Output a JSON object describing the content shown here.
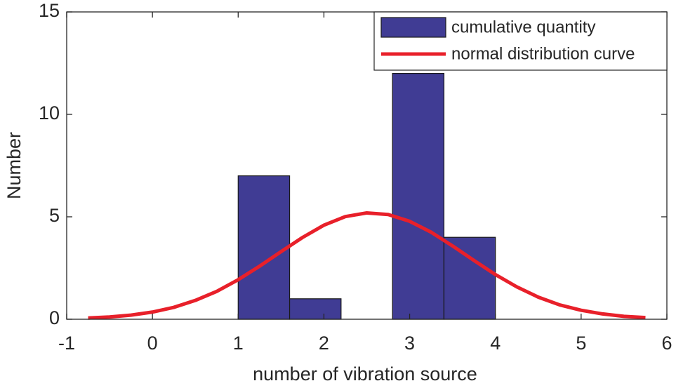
{
  "chart_data": {
    "type": "histogram",
    "xlabel": "number of vibration source",
    "ylabel": "Number",
    "xlim": [
      -1,
      6
    ],
    "xticks": [
      -1,
      0,
      1,
      2,
      3,
      4,
      5,
      6
    ],
    "ylim": [
      0,
      15
    ],
    "yticks": [
      0,
      5,
      10,
      15
    ],
    "legend": "northeast",
    "bins": [
      1,
      1.6,
      2.2,
      2.8,
      3.4,
      4
    ],
    "series": [
      {
        "name": "cumulative quantity",
        "color": "#403c94",
        "values": [
          7,
          1,
          0,
          12,
          4
        ]
      },
      {
        "name": "normal distribution curve",
        "color": "#e8202a",
        "type": "line",
        "x": [
          -0.75,
          -0.5,
          -0.25,
          0,
          0.25,
          0.5,
          0.75,
          1,
          1.25,
          1.5,
          1.75,
          2,
          2.25,
          2.5,
          2.75,
          3,
          3.25,
          3.5,
          3.75,
          4,
          4.25,
          4.5,
          4.75,
          5,
          5.25,
          5.5,
          5.75
        ],
        "values": [
          0.06,
          0.11,
          0.2,
          0.35,
          0.58,
          0.92,
          1.36,
          1.93,
          2.59,
          3.3,
          3.99,
          4.59,
          5.01,
          5.19,
          5.11,
          4.78,
          4.25,
          3.58,
          2.87,
          2.18,
          1.58,
          1.08,
          0.7,
          0.44,
          0.26,
          0.14,
          0.08
        ]
      }
    ]
  }
}
